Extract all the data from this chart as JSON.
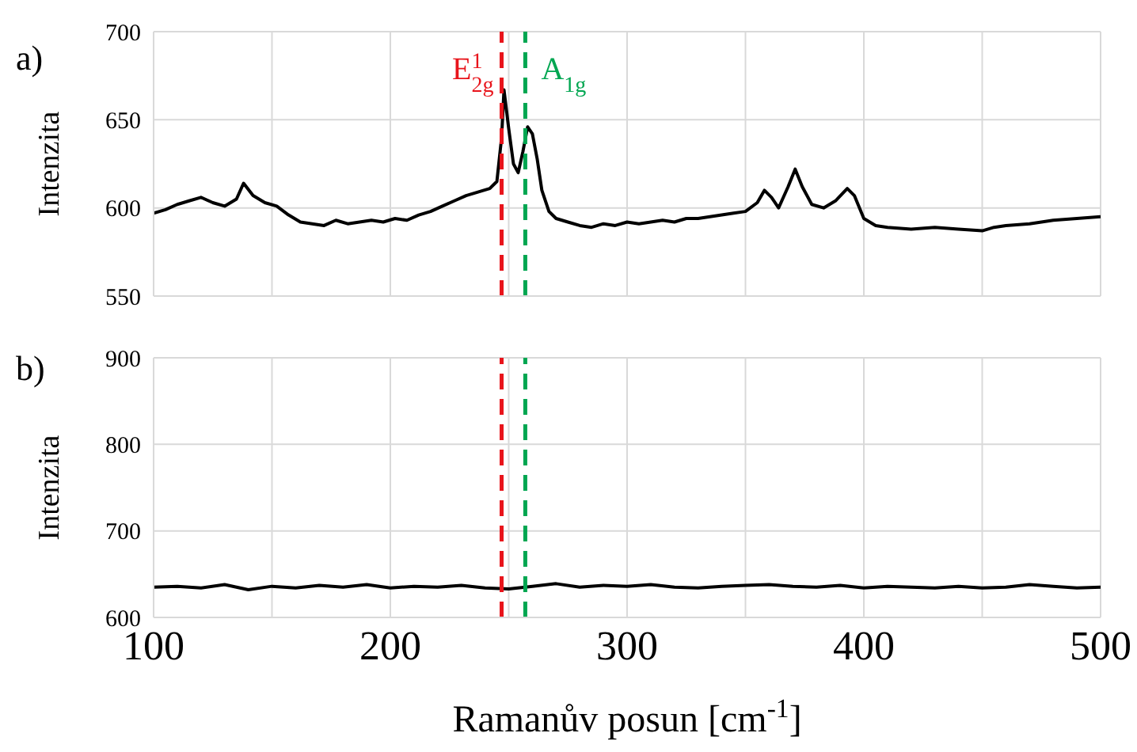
{
  "chart_data": [
    {
      "type": "line",
      "ylabel": "Intenzita",
      "annotations": [
        "a)"
      ],
      "tick_labels": "y",
      "grid": true,
      "marker": "none",
      "x": [
        100,
        105,
        110,
        115,
        120,
        125,
        130,
        135,
        138,
        142,
        147,
        152,
        157,
        162,
        167,
        172,
        177,
        182,
        187,
        192,
        197,
        202,
        207,
        212,
        217,
        222,
        227,
        232,
        237,
        242,
        245,
        247,
        248,
        250,
        252,
        254,
        256,
        258,
        260,
        262,
        264,
        267,
        270,
        275,
        280,
        285,
        290,
        295,
        300,
        305,
        310,
        315,
        320,
        325,
        330,
        335,
        340,
        345,
        350,
        355,
        358,
        361,
        364,
        368,
        371,
        374,
        378,
        383,
        388,
        393,
        396,
        400,
        405,
        410,
        420,
        430,
        440,
        450,
        455,
        460,
        470,
        480,
        490,
        500
      ],
      "series": [
        {
          "color": "#000000",
          "values": [
            597,
            599,
            602,
            604,
            606,
            603,
            601,
            605,
            614,
            607,
            603,
            601,
            596,
            592,
            591,
            590,
            593,
            591,
            592,
            593,
            592,
            594,
            593,
            596,
            598,
            601,
            604,
            607,
            609,
            611,
            615,
            640,
            667,
            645,
            625,
            620,
            632,
            646,
            642,
            628,
            610,
            598,
            594,
            592,
            590,
            589,
            591,
            590,
            592,
            591,
            592,
            593,
            592,
            594,
            594,
            595,
            596,
            597,
            598,
            603,
            610,
            606,
            600,
            612,
            622,
            612,
            602,
            600,
            604,
            611,
            607,
            594,
            590,
            589,
            588,
            589,
            588,
            587,
            589,
            590,
            591,
            593,
            594,
            595
          ]
        }
      ],
      "xlim": [
        100,
        500
      ],
      "xticks": [
        100,
        {
          "value": 150,
          "label": null
        },
        200,
        {
          "value": 250,
          "label": null
        },
        300,
        {
          "value": 350,
          "label": null
        },
        400,
        {
          "value": 450,
          "label": null
        },
        500
      ],
      "ylim": [
        550,
        700
      ],
      "yticks": [
        550,
        600,
        650,
        700
      ],
      "ref_lines": [
        {
          "axis": "x",
          "value": 247,
          "label": "E$^{1}$$_{2g}$",
          "color": "#e8141b",
          "line_style": "dashed"
        },
        {
          "axis": "x",
          "value": 257,
          "label": "A$_{1g}$",
          "color": "#00a651",
          "line_style": "dashed"
        }
      ]
    },
    {
      "type": "line",
      "ylabel": "Intenzita",
      "xlabel": "Ramanův posun [cm$^{-1}$]",
      "annotations": [
        "b)"
      ],
      "grid": true,
      "marker": "none",
      "x": [
        100,
        110,
        120,
        130,
        140,
        150,
        160,
        170,
        180,
        190,
        200,
        210,
        220,
        230,
        240,
        250,
        260,
        270,
        280,
        290,
        300,
        310,
        320,
        330,
        340,
        350,
        360,
        370,
        380,
        390,
        400,
        410,
        420,
        430,
        440,
        450,
        460,
        470,
        480,
        490,
        500
      ],
      "series": [
        {
          "color": "#000000",
          "values": [
            635,
            636,
            634,
            638,
            632,
            636,
            634,
            637,
            635,
            638,
            634,
            636,
            635,
            637,
            634,
            633,
            636,
            639,
            635,
            637,
            636,
            638,
            635,
            634,
            636,
            637,
            638,
            636,
            635,
            637,
            634,
            636,
            635,
            634,
            636,
            634,
            635,
            638,
            636,
            634,
            635
          ]
        }
      ],
      "xlim": [
        100,
        500
      ],
      "xticks": [
        100,
        {
          "value": 150,
          "label": null
        },
        200,
        {
          "value": 250,
          "label": null
        },
        300,
        {
          "value": 350,
          "label": null
        },
        400,
        {
          "value": 450,
          "label": null
        },
        500
      ],
      "ylim": [
        600,
        900
      ],
      "yticks": [
        600,
        700,
        800,
        900
      ],
      "ref_lines": [
        {
          "axis": "x",
          "value": 247,
          "color": "#e8141b",
          "line_style": "dashed"
        },
        {
          "axis": "x",
          "value": 257,
          "color": "#00a651",
          "line_style": "dashed"
        }
      ]
    }
  ]
}
